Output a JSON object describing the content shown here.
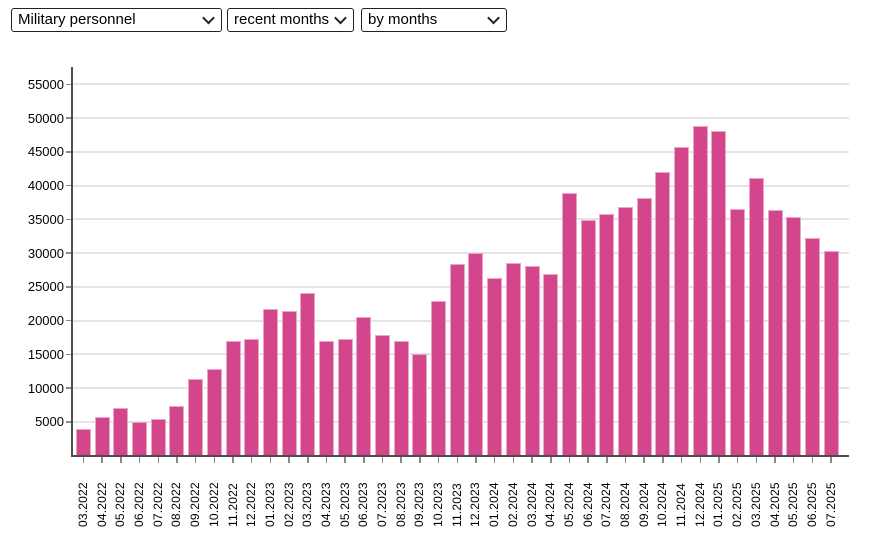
{
  "toolbar": {
    "selects": [
      {
        "name": "metric",
        "value": "Military personnel"
      },
      {
        "name": "period",
        "value": "recent months"
      },
      {
        "name": "grouping",
        "value": "by months"
      }
    ]
  },
  "chart_data": {
    "type": "bar",
    "title": "",
    "xlabel": "",
    "ylabel": "",
    "legend": false,
    "grid": true,
    "ylim": [
      0,
      57500
    ],
    "yticks": [
      5000,
      10000,
      15000,
      20000,
      25000,
      30000,
      35000,
      40000,
      45000,
      50000,
      55000
    ],
    "categories": [
      "03.2022",
      "04.2022",
      "05.2022",
      "06.2022",
      "07.2022",
      "08.2022",
      "09.2022",
      "10.2022",
      "11.2022",
      "12.2022",
      "01.2023",
      "02.2023",
      "03.2023",
      "04.2023",
      "05.2023",
      "06.2023",
      "07.2023",
      "08.2023",
      "09.2023",
      "10.2023",
      "11.2023",
      "12.2023",
      "01.2024",
      "02.2024",
      "03.2024",
      "04.2024",
      "05.2024",
      "06.2024",
      "07.2024",
      "08.2024",
      "09.2024",
      "10.2024",
      "11.2024",
      "12.2024",
      "01.2025",
      "02.2025",
      "03.2025",
      "04.2025",
      "05.2025",
      "06.2025",
      "07.2025"
    ],
    "values": [
      3900,
      5650,
      7100,
      4900,
      5350,
      7350,
      11300,
      12750,
      16950,
      17250,
      21650,
      21450,
      24050,
      16950,
      17300,
      20500,
      17800,
      16900,
      15000,
      22900,
      28450,
      30050,
      26250,
      28600,
      28100,
      26900,
      38850,
      34900,
      35800,
      36800,
      38150,
      42050,
      45700,
      48800,
      48150,
      36550,
      41150,
      36400,
      35400,
      32300,
      30250
    ],
    "colors": {
      "bar_fill": "#d4468c",
      "bar_edge": "#e9a6c8",
      "gridline": "#e4e4e4",
      "axis": "#4d4d4d",
      "tick": "#8a8a8a"
    }
  }
}
